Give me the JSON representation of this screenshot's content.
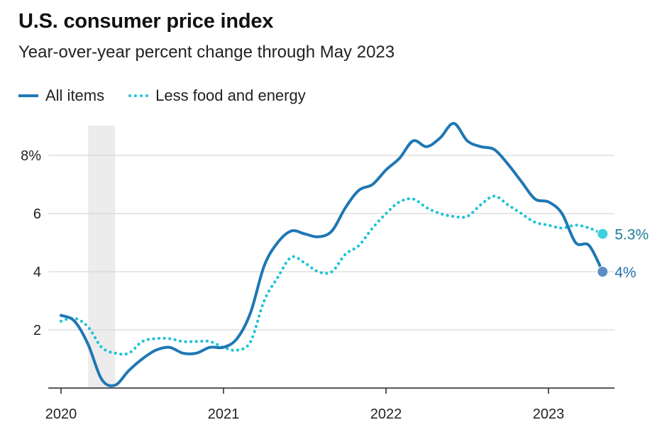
{
  "chart_data": {
    "type": "line",
    "title": "U.S. consumer price index",
    "subtitle": "Year-over-year percent change through May 2023",
    "xlabel": "",
    "ylabel": "",
    "xlim": [
      2020.0,
      2023.33
    ],
    "ylim": [
      -0.2,
      9.2
    ],
    "x_ticks": [
      {
        "value": 2020,
        "label": "2020"
      },
      {
        "value": 2021,
        "label": "2021"
      },
      {
        "value": 2022,
        "label": "2022"
      },
      {
        "value": 2023,
        "label": "2023"
      }
    ],
    "y_ticks": [
      {
        "value": 2,
        "label": "2"
      },
      {
        "value": 4,
        "label": "4"
      },
      {
        "value": 6,
        "label": "6"
      },
      {
        "value": 8,
        "label": "8%"
      }
    ],
    "grid": true,
    "shaded_region": {
      "x_start": 2020.167,
      "x_end": 2020.333,
      "note": "recession"
    },
    "series": [
      {
        "name": "All items",
        "color": "#1f77b4",
        "style": "solid",
        "end_label": "4%",
        "x": [
          2020.0,
          2020.083,
          2020.167,
          2020.25,
          2020.333,
          2020.417,
          2020.5,
          2020.583,
          2020.667,
          2020.75,
          2020.833,
          2020.917,
          2021.0,
          2021.083,
          2021.167,
          2021.25,
          2021.333,
          2021.417,
          2021.5,
          2021.583,
          2021.667,
          2021.75,
          2021.833,
          2021.917,
          2022.0,
          2022.083,
          2022.167,
          2022.25,
          2022.333,
          2022.417,
          2022.5,
          2022.583,
          2022.667,
          2022.75,
          2022.833,
          2022.917,
          2023.0,
          2023.083,
          2023.167,
          2023.25,
          2023.333
        ],
        "values": [
          2.5,
          2.3,
          1.5,
          0.3,
          0.1,
          0.6,
          1.0,
          1.3,
          1.4,
          1.2,
          1.2,
          1.4,
          1.4,
          1.7,
          2.6,
          4.2,
          5.0,
          5.4,
          5.3,
          5.2,
          5.4,
          6.2,
          6.8,
          7.0,
          7.5,
          7.9,
          8.5,
          8.3,
          8.6,
          9.1,
          8.5,
          8.3,
          8.2,
          7.7,
          7.1,
          6.5,
          6.4,
          6.0,
          5.0,
          4.9,
          4.0
        ]
      },
      {
        "name": "Less food and energy",
        "color": "#1ec3d6",
        "style": "dotted",
        "end_label": "5.3%",
        "x": [
          2020.0,
          2020.083,
          2020.167,
          2020.25,
          2020.333,
          2020.417,
          2020.5,
          2020.583,
          2020.667,
          2020.75,
          2020.833,
          2020.917,
          2021.0,
          2021.083,
          2021.167,
          2021.25,
          2021.333,
          2021.417,
          2021.5,
          2021.583,
          2021.667,
          2021.75,
          2021.833,
          2021.917,
          2022.0,
          2022.083,
          2022.167,
          2022.25,
          2022.333,
          2022.417,
          2022.5,
          2022.583,
          2022.667,
          2022.75,
          2022.833,
          2022.917,
          2023.0,
          2023.083,
          2023.167,
          2023.25,
          2023.333
        ],
        "values": [
          2.3,
          2.4,
          2.1,
          1.4,
          1.2,
          1.2,
          1.6,
          1.7,
          1.7,
          1.6,
          1.6,
          1.6,
          1.4,
          1.3,
          1.6,
          3.0,
          3.8,
          4.5,
          4.3,
          4.0,
          4.0,
          4.6,
          4.9,
          5.5,
          6.0,
          6.4,
          6.5,
          6.2,
          6.0,
          5.9,
          5.9,
          6.3,
          6.6,
          6.3,
          6.0,
          5.7,
          5.6,
          5.5,
          5.6,
          5.5,
          5.3
        ]
      }
    ]
  }
}
